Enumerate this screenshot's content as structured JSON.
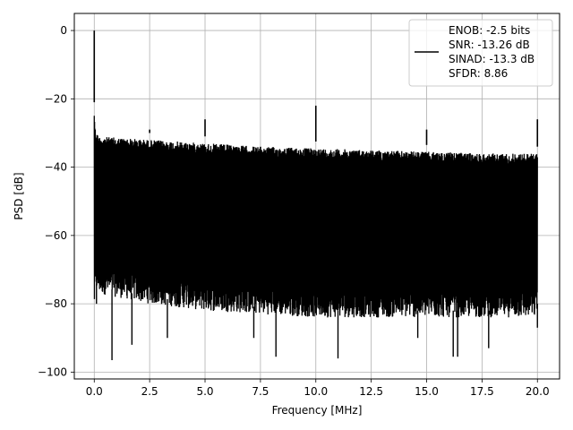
{
  "chart_data": {
    "type": "line",
    "xlabel": "Frequency [MHz]",
    "ylabel": "PSD [dB]",
    "xlim": [
      -0.9,
      21.0
    ],
    "ylim": [
      -102,
      5
    ],
    "xticks": [
      0.0,
      2.5,
      5.0,
      7.5,
      10.0,
      12.5,
      15.0,
      17.5,
      20.0
    ],
    "xtick_labels": [
      "0.0",
      "2.5",
      "5.0",
      "7.5",
      "10.0",
      "12.5",
      "15.0",
      "17.5",
      "20.0"
    ],
    "yticks": [
      0,
      -20,
      -40,
      -60,
      -80,
      -100
    ],
    "ytick_labels": [
      "0",
      "−20",
      "−40",
      "−60",
      "−80",
      "−100"
    ],
    "grid": true,
    "legend_position": "top-right",
    "series": [
      {
        "color": "#000000",
        "legend_lines": [
          "ENOB: -2.5 bits",
          "SNR: -13.26 dB",
          "SINAD: -13.3 dB",
          "SFDR: 8.86"
        ],
        "noise_band": {
          "x": [
            0.0,
            0.05,
            0.2,
            2.5,
            5.0,
            7.5,
            10.0,
            12.5,
            15.0,
            17.5,
            19.9,
            20.0
          ],
          "upper": [
            -23,
            -29,
            -31,
            -32,
            -33,
            -34,
            -34.5,
            -35,
            -35.5,
            -36,
            -36,
            -36
          ],
          "lower": [
            -80,
            -74,
            -75,
            -78,
            -80,
            -81,
            -82,
            -82,
            -82,
            -82,
            -82,
            -80
          ],
          "deep_dips": [
            {
              "x": 0.1,
              "y": -80
            },
            {
              "x": 0.8,
              "y": -96.5
            },
            {
              "x": 1.7,
              "y": -92
            },
            {
              "x": 3.3,
              "y": -90
            },
            {
              "x": 7.2,
              "y": -90
            },
            {
              "x": 8.2,
              "y": -95.5
            },
            {
              "x": 11.0,
              "y": -96
            },
            {
              "x": 14.6,
              "y": -90
            },
            {
              "x": 16.2,
              "y": -95.5
            },
            {
              "x": 16.4,
              "y": -95.5
            },
            {
              "x": 17.8,
              "y": -93
            },
            {
              "x": 20.0,
              "y": -87
            }
          ]
        },
        "spurs": [
          {
            "x": 0.0,
            "y": 0.0
          },
          {
            "x": 2.5,
            "y": -29
          },
          {
            "x": 5.0,
            "y": -26
          },
          {
            "x": 10.0,
            "y": -22
          },
          {
            "x": 15.0,
            "y": -29
          },
          {
            "x": 20.0,
            "y": -26
          }
        ]
      }
    ]
  }
}
